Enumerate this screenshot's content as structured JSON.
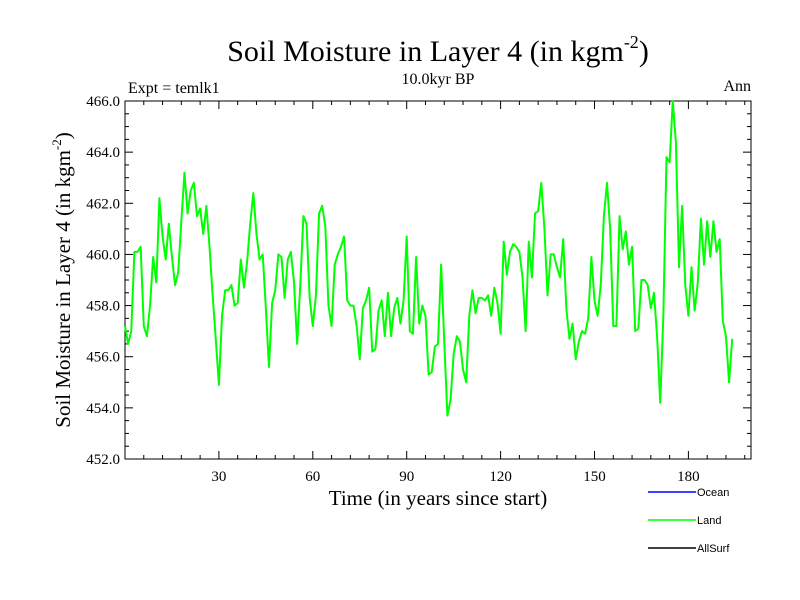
{
  "chart_data": {
    "type": "line",
    "title": "Soil Moisture in Layer 4 (in kgm",
    "title_sup": "-2",
    "title_close": ")",
    "subtitle": "10.0kyr BP",
    "left_label": "Expt = temlk1",
    "right_label": "Ann",
    "xlabel": "Time (in years since start)",
    "ylabel": "Soil Moisture in Layer 4 (in kgm",
    "ylabel_sup": "-2",
    "ylabel_close": ")",
    "xlim": [
      0,
      200
    ],
    "ylim": [
      452,
      466
    ],
    "x_ticks": [
      30,
      60,
      90,
      120,
      150,
      180
    ],
    "x_tick_labels": [
      "30",
      "60",
      "90",
      "120",
      "150",
      "180"
    ],
    "y_ticks": [
      452,
      454,
      456,
      458,
      460,
      462,
      464,
      466
    ],
    "y_tick_labels": [
      "452.0",
      "454.0",
      "456.0",
      "458.0",
      "460.0",
      "462.0",
      "464.0",
      "466.0"
    ],
    "legend": [
      {
        "name": "Ocean",
        "color": "#0000ff"
      },
      {
        "name": "Land",
        "color": "#00ff00"
      },
      {
        "name": "AllSurf",
        "color": "#000000"
      }
    ],
    "series": [
      {
        "name": "Land",
        "color": "#00ff00",
        "x_start": 0,
        "x_step": 1,
        "values": [
          457.2,
          456.5,
          457.0,
          460.1,
          460.1,
          460.3,
          457.2,
          456.8,
          458.0,
          459.9,
          458.9,
          462.2,
          460.7,
          459.8,
          461.2,
          459.9,
          458.8,
          459.3,
          461.3,
          463.2,
          461.6,
          462.5,
          462.8,
          461.5,
          461.8,
          460.8,
          461.9,
          460.3,
          458.4,
          456.7,
          454.9,
          457.6,
          458.6,
          458.6,
          458.8,
          458.0,
          458.1,
          459.8,
          458.7,
          459.7,
          461.2,
          462.4,
          460.8,
          459.8,
          460.0,
          457.9,
          455.6,
          458.1,
          458.6,
          460.0,
          459.9,
          458.3,
          459.8,
          460.1,
          458.9,
          456.5,
          458.8,
          461.5,
          461.2,
          458.3,
          457.2,
          458.4,
          461.6,
          461.9,
          461.1,
          458.0,
          457.2,
          459.6,
          460.0,
          460.3,
          460.7,
          458.2,
          458.0,
          458.0,
          457.2,
          455.9,
          457.9,
          458.2,
          458.7,
          456.2,
          456.3,
          457.8,
          458.2,
          456.8,
          458.5,
          456.8,
          457.9,
          458.3,
          457.3,
          458.2,
          460.7,
          457.0,
          456.9,
          459.9,
          457.3,
          458.0,
          457.6,
          455.3,
          455.4,
          456.4,
          456.5,
          459.6,
          456.6,
          453.7,
          454.3,
          456.1,
          456.8,
          456.6,
          455.5,
          455.0,
          457.6,
          458.6,
          457.7,
          458.3,
          458.3,
          458.2,
          458.4,
          457.6,
          458.7,
          458.1,
          456.9,
          460.5,
          459.2,
          460.1,
          460.4,
          460.3,
          460.1,
          459.1,
          457.0,
          460.5,
          459.1,
          461.6,
          461.7,
          462.8,
          461.0,
          458.4,
          460.0,
          460.0,
          459.5,
          459.1,
          460.6,
          457.9,
          456.7,
          457.3,
          455.9,
          456.6,
          457.0,
          456.9,
          457.5,
          459.9,
          458.2,
          457.6,
          458.8,
          461.5,
          462.8,
          461.0,
          457.2,
          457.2,
          461.5,
          460.2,
          460.9,
          459.6,
          460.3,
          457.0,
          457.1,
          459.0,
          459.0,
          458.8,
          457.9,
          458.5,
          456.8,
          454.2,
          457.6,
          463.8,
          463.6,
          466.0,
          464.4,
          459.5,
          461.9,
          458.8,
          457.6,
          459.5,
          457.8,
          458.9,
          461.4,
          459.6,
          461.3,
          459.9,
          461.3,
          460.1,
          460.6,
          457.4,
          456.8,
          455.0,
          456.7
        ]
      }
    ]
  }
}
